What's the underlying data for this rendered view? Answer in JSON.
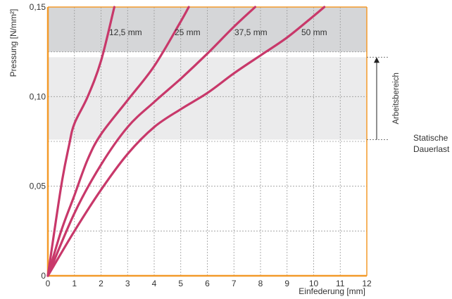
{
  "chart_data": {
    "type": "line",
    "ylabel": "Pressung [N/mm²]",
    "xlabel": "Einfederung [mm]",
    "xlim": [
      0,
      12
    ],
    "ylim": [
      0,
      0.15
    ],
    "x_ticks": [
      "0",
      "1",
      "2",
      "3",
      "4",
      "5",
      "6",
      "7",
      "8",
      "9",
      "10",
      "11",
      "12"
    ],
    "y_ticks": [
      {
        "value": 0,
        "label": "0"
      },
      {
        "value": 0.05,
        "label": "0,05"
      },
      {
        "value": 0.1,
        "label": "0,10"
      },
      {
        "value": 0.15,
        "label": "0,15"
      }
    ],
    "grid": true,
    "bands": [
      {
        "from": 0.125,
        "to": 0.15,
        "color": "#d5d6d8"
      },
      {
        "from": 0.076,
        "to": 0.122,
        "color": "#ebebec"
      }
    ],
    "annotations": {
      "arbeitsbereich": "Arbeitsbereich",
      "statische_line1": "Statische",
      "statische_line2": "Dauerlast",
      "arbeitsbereich_top": 0.122,
      "statische_level": 0.076
    },
    "series": [
      {
        "name": "12,5 mm",
        "color": "#c8386a",
        "points": [
          [
            0,
            0
          ],
          [
            0.5,
            0.05
          ],
          [
            0.8,
            0.073
          ],
          [
            1.0,
            0.085
          ],
          [
            1.5,
            0.1
          ],
          [
            2.0,
            0.12
          ],
          [
            2.5,
            0.15
          ]
        ]
      },
      {
        "name": "25 mm",
        "color": "#c8386a",
        "points": [
          [
            0,
            0
          ],
          [
            0.5,
            0.025
          ],
          [
            1.0,
            0.045
          ],
          [
            1.5,
            0.065
          ],
          [
            2.0,
            0.079
          ],
          [
            3.0,
            0.098
          ],
          [
            4.0,
            0.117
          ],
          [
            5.0,
            0.142
          ],
          [
            5.3,
            0.15
          ]
        ]
      },
      {
        "name": "37,5 mm",
        "color": "#c8386a",
        "points": [
          [
            0,
            0
          ],
          [
            1.0,
            0.035
          ],
          [
            2.0,
            0.062
          ],
          [
            3.0,
            0.083
          ],
          [
            4.0,
            0.097
          ],
          [
            5.0,
            0.11
          ],
          [
            6.0,
            0.124
          ],
          [
            7.0,
            0.139
          ],
          [
            7.8,
            0.15
          ]
        ]
      },
      {
        "name": "50 mm",
        "color": "#c8386a",
        "points": [
          [
            0,
            0
          ],
          [
            1.0,
            0.025
          ],
          [
            2.0,
            0.048
          ],
          [
            3.0,
            0.068
          ],
          [
            4.0,
            0.083
          ],
          [
            5.0,
            0.093
          ],
          [
            6.0,
            0.102
          ],
          [
            7.0,
            0.113
          ],
          [
            8.0,
            0.123
          ],
          [
            9.0,
            0.133
          ],
          [
            10.0,
            0.145
          ],
          [
            10.4,
            0.15
          ]
        ]
      }
    ],
    "axis_color": "#f39a2a"
  }
}
